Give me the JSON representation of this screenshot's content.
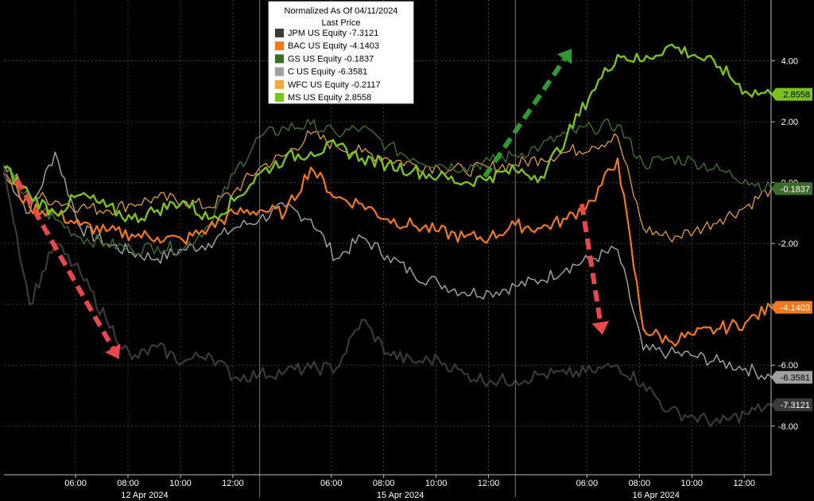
{
  "chart_data": {
    "type": "line",
    "title": "Normalized As Of 04/11/2024",
    "subtitle": "Last Price",
    "ylim": [
      -9.6,
      6.0
    ],
    "yticks": [
      4.0,
      2.0,
      0.0,
      -2.0,
      -4.0,
      -6.0,
      -8.0
    ],
    "ytick_labels": [
      "4.00",
      "2.00",
      "0.00",
      "-2.00",
      "-4.00",
      "-6.00",
      "-8.00"
    ],
    "sessions": [
      {
        "date": "12 Apr 2024",
        "ticks": [
          "06:00",
          "08:00",
          "10:00",
          "12:00"
        ]
      },
      {
        "date": "15 Apr 2024",
        "ticks": [
          "06:00",
          "08:00",
          "10:00",
          "12:00"
        ]
      },
      {
        "date": "16 Apr 2024",
        "ticks": [
          "06:00",
          "08:00",
          "10:00",
          "12:00"
        ]
      }
    ],
    "x_steps": 30,
    "grid": true,
    "legend_position": "top-center",
    "series": [
      {
        "name": "JPM US Equity",
        "last": "-7.3121",
        "color": "#3a3a3a",
        "width": 2.2,
        "values": [
          0.6,
          -4.0,
          -2.0,
          -3.0,
          -4.5,
          -5.8,
          -5.4,
          -5.9,
          -5.6,
          -6.4,
          -6.3,
          -6.2,
          -6.1,
          -6.1,
          -4.5,
          -5.6,
          -5.9,
          -5.8,
          -6.3,
          -6.5,
          -6.5,
          -6.3,
          -6.3,
          -6.2,
          -6.0,
          -6.6,
          -7.5,
          -7.7,
          -7.9,
          -7.6,
          -7.3
        ]
      },
      {
        "name": "BAC US Equity",
        "last": "-4.1403",
        "color": "#f07820",
        "width": 2.2,
        "values": [
          0.3,
          -0.8,
          -1.0,
          -1.4,
          -1.6,
          -1.7,
          -1.8,
          -1.9,
          -1.5,
          -1.0,
          -0.9,
          -1.0,
          0.5,
          -0.5,
          -0.7,
          -1.2,
          -1.4,
          -1.6,
          -1.8,
          -1.8,
          -1.4,
          -1.5,
          -1.2,
          -0.6,
          0.8,
          -4.8,
          -5.2,
          -5.0,
          -4.8,
          -4.6,
          -4.1
        ]
      },
      {
        "name": "GS US Equity",
        "last": "-0.1837",
        "color": "#3d6b2a",
        "width": 1.5,
        "values": [
          0.5,
          -0.6,
          -1.2,
          -1.8,
          -2.0,
          -2.2,
          -2.1,
          -2.2,
          -1.4,
          0.3,
          1.5,
          1.8,
          1.9,
          1.6,
          1.8,
          1.2,
          0.8,
          0.6,
          0.5,
          0.7,
          0.9,
          1.2,
          1.6,
          1.8,
          1.9,
          0.6,
          0.8,
          0.7,
          0.4,
          0.1,
          -0.2
        ]
      },
      {
        "name": "C US Equity",
        "last": "-6.3581",
        "color": "#a0a0a0",
        "width": 1.5,
        "values": [
          0.4,
          -1.0,
          1.0,
          -1.5,
          -2.0,
          -2.3,
          -2.5,
          -2.2,
          -2.0,
          -1.5,
          -1.2,
          -0.8,
          -1.2,
          -2.5,
          -1.8,
          -2.4,
          -3.0,
          -3.3,
          -3.6,
          -3.6,
          -3.4,
          -3.2,
          -2.8,
          -2.5,
          -2.2,
          -5.5,
          -5.6,
          -5.7,
          -5.9,
          -6.1,
          -6.4
        ]
      },
      {
        "name": "WFC US Equity",
        "last": "-0.2117",
        "color": "#f2a83a",
        "width": 1.2,
        "values": [
          0.6,
          -0.4,
          -0.6,
          -0.8,
          -0.9,
          -0.7,
          -0.5,
          -0.6,
          -0.8,
          -0.3,
          0.5,
          0.9,
          1.6,
          1.2,
          1.0,
          0.8,
          0.6,
          0.5,
          0.4,
          0.5,
          0.6,
          0.8,
          1.0,
          1.2,
          1.5,
          -1.5,
          -1.8,
          -1.6,
          -1.2,
          -0.8,
          -0.2
        ]
      },
      {
        "name": "MS US Equity",
        "last": "2.8558",
        "color": "#7ac21e",
        "width": 2.4,
        "values": [
          0.5,
          -0.4,
          -1.0,
          -0.4,
          -0.8,
          -1.2,
          -0.9,
          -0.6,
          -1.2,
          -0.6,
          0.3,
          0.8,
          1.0,
          1.2,
          0.8,
          0.6,
          0.4,
          0.2,
          0.0,
          0.2,
          0.4,
          0.2,
          1.5,
          3.0,
          4.2,
          4.0,
          4.5,
          4.2,
          3.8,
          3.0,
          2.9
        ]
      }
    ],
    "arrows": [
      {
        "color": "#e8484a",
        "from": [
          0.5,
          0.1
        ],
        "to": [
          4.5,
          -5.8
        ]
      },
      {
        "color": "#e8484a",
        "from": [
          22.6,
          -0.7
        ],
        "to": [
          23.4,
          -5.0
        ]
      },
      {
        "color": "#2f9a2f",
        "from": [
          18.8,
          0.2
        ],
        "to": [
          22.2,
          4.4
        ]
      }
    ]
  }
}
